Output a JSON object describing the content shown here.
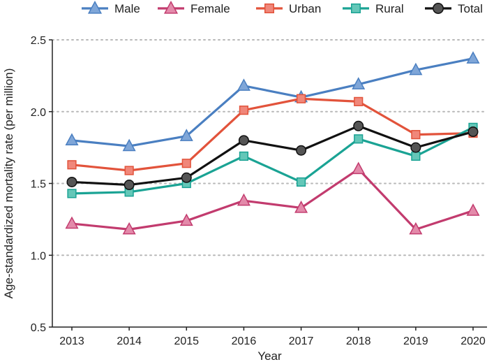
{
  "chart_data": {
    "type": "line",
    "title": "",
    "xlabel": "Year",
    "ylabel": "Age-standardized mortality rate (per million)",
    "x": [
      "2013",
      "2014",
      "2015",
      "2016",
      "2017",
      "2018",
      "2019",
      "2020"
    ],
    "ylim": [
      0.5,
      2.5
    ],
    "yticks": [
      "0.5",
      "1.0",
      "1.5",
      "2.0",
      "2.5"
    ],
    "grid": "horizontal-dotted",
    "legend_position": "top",
    "series": [
      {
        "name": "Male",
        "marker": "triangle",
        "color": "#4a7fc1",
        "fill": "#7fa6d8",
        "values": [
          1.8,
          1.76,
          1.83,
          2.18,
          2.1,
          2.19,
          2.29,
          2.37
        ]
      },
      {
        "name": "Female",
        "marker": "triangle",
        "color": "#c23b6e",
        "fill": "#e38aaa",
        "values": [
          1.22,
          1.18,
          1.24,
          1.38,
          1.33,
          1.6,
          1.18,
          1.31
        ]
      },
      {
        "name": "Urban",
        "marker": "square",
        "color": "#e2533b",
        "fill": "#f0877a",
        "values": [
          1.63,
          1.59,
          1.64,
          2.01,
          2.09,
          2.07,
          1.84,
          1.85
        ]
      },
      {
        "name": "Rural",
        "marker": "square",
        "color": "#1aa394",
        "fill": "#64c7b8",
        "values": [
          1.43,
          1.44,
          1.5,
          1.69,
          1.51,
          1.81,
          1.69,
          1.89
        ]
      },
      {
        "name": "Total",
        "marker": "circle",
        "color": "#111111",
        "fill": "#555555",
        "values": [
          1.51,
          1.49,
          1.54,
          1.8,
          1.73,
          1.9,
          1.75,
          1.86
        ]
      }
    ]
  }
}
